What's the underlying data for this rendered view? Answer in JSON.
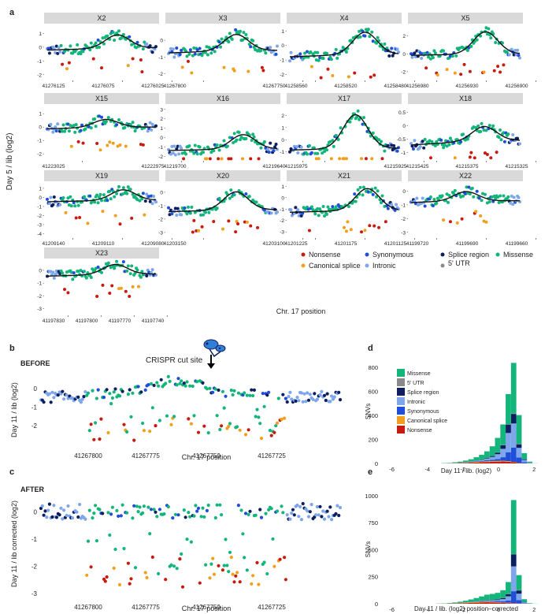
{
  "panel_labels": {
    "a": "a",
    "b": "b",
    "c": "c",
    "d": "d",
    "e": "e"
  },
  "colors": {
    "Nonsense": "#c81b0f",
    "Canonical splice": "#f0a01e",
    "Synonymous": "#1f4ed8",
    "Intronic": "#7ea6ea",
    "Splice region": "#0d1f5e",
    "5' UTR": "#8a8a8a",
    "Missense": "#13b57a"
  },
  "text": {
    "a_ylabel": "Day 5 / lib (log2)",
    "a_xlabel": "Chr. 17 position",
    "b_title": "BEFORE",
    "b_annotation": "CRISPR cut site",
    "b_ylabel": "Day 11 / lib (log2)",
    "b_xlabel": "Chr. 17 position",
    "c_title": "AFTER",
    "c_ylabel": "Day 11 / lib corrected (log2)",
    "c_xlabel": "Chr. 17 position",
    "d_ylabel": "SNVs",
    "d_xlabel": "Day 11 / lib. (log2)",
    "e_ylabel": "SNVs",
    "e_xlabel": "Day 11 / lib. (log2) position–corrected"
  },
  "legend_a": {
    "rows": [
      [
        "Nonsense",
        "Synonymous",
        "Splice region",
        "Missense"
      ],
      [
        "Canonical splice",
        "Intronic",
        "5' UTR"
      ]
    ]
  },
  "chart_data": [
    {
      "id": "a",
      "type": "scatter",
      "ylabel": "Day 5 / lib (log2)",
      "xlabel": "Chr. 17 position",
      "facets": [
        {
          "name": "X2",
          "yticks": [
            1,
            0,
            -1,
            -2
          ],
          "ylim": [
            -2.3,
            1.6
          ],
          "xticks": [
            "41276125",
            "41276075",
            "41276025"
          ],
          "peak": 0.95,
          "base": -0.05
        },
        {
          "name": "X3",
          "yticks": [
            0,
            -1,
            -2
          ],
          "ylim": [
            -2.3,
            0.9
          ],
          "xticks": [
            "41267800",
            "41267750"
          ],
          "peak": 0.4,
          "base": -0.6
        },
        {
          "name": "X4",
          "yticks": [
            1,
            0,
            -1,
            -2
          ],
          "ylim": [
            -2.3,
            1.4
          ],
          "xticks": [
            "41258560",
            "41258520",
            "41258480"
          ],
          "peak": 1.0,
          "base": -0.6
        },
        {
          "name": "X5",
          "yticks": [
            2,
            0,
            -2
          ],
          "ylim": [
            -2.8,
            3.2
          ],
          "xticks": [
            "41256980",
            "41256930",
            "41256900"
          ],
          "peak": 2.6,
          "base": 0.0
        },
        {
          "name": "X15",
          "yticks": [
            1,
            0,
            -1,
            -2
          ],
          "ylim": [
            -2.4,
            1.6
          ],
          "xticks": [
            "41223025",
            "41222975"
          ],
          "peak": 0.6,
          "base": 0.0
        },
        {
          "name": "X16",
          "yticks": [
            3,
            2,
            1,
            0,
            -1,
            -2
          ],
          "ylim": [
            -2.3,
            3.4
          ],
          "xticks": [
            "41219700",
            "41219640"
          ],
          "peak": 0.4,
          "base": -1.2
        },
        {
          "name": "X17",
          "yticks": [
            2,
            1,
            0,
            -1
          ],
          "ylim": [
            -1.6,
            2.8
          ],
          "xticks": [
            "41215975",
            "41215925"
          ],
          "peak": 2.2,
          "base": -0.7
        },
        {
          "name": "X18",
          "yticks": [
            0.5,
            0.0,
            -0.5,
            -1.0
          ],
          "ylim": [
            -1.25,
            0.75
          ],
          "xticks": [
            "41215425",
            "41215375",
            "41215325"
          ],
          "peak": 0.0,
          "base": -0.55
        },
        {
          "name": "X19",
          "yticks": [
            1,
            0,
            -1,
            -2,
            -3,
            -4
          ],
          "ylim": [
            -4.3,
            1.6
          ],
          "xticks": [
            "41209140",
            "41209110",
            "41209080"
          ],
          "peak": 0.9,
          "base": -0.3
        },
        {
          "name": "X20",
          "yticks": [
            0,
            -1,
            -2,
            -3
          ],
          "ylim": [
            -3.3,
            0.7
          ],
          "xticks": [
            "41203150",
            "41203100"
          ],
          "peak": 0.1,
          "base": -1.3
        },
        {
          "name": "X21",
          "yticks": [
            1,
            0,
            -1,
            -2,
            -3
          ],
          "ylim": [
            -3.4,
            1.3
          ],
          "xticks": [
            "41201225",
            "41201175",
            "41201125"
          ],
          "peak": 0.9,
          "base": -1.1
        },
        {
          "name": "X22",
          "yticks": [
            0,
            -1,
            -2,
            -3
          ],
          "ylim": [
            -3.3,
            0.6
          ],
          "xticks": [
            "41199720",
            "41199690",
            "41199660"
          ],
          "peak": 0.0,
          "base": -0.7
        },
        {
          "name": "X23",
          "yticks": [
            0,
            -1,
            -2,
            -3
          ],
          "ylim": [
            -3.4,
            0.8
          ],
          "xticks": [
            "41197830",
            "41197800",
            "41197770",
            "41197740"
          ],
          "peak": 0.5,
          "base": -0.3
        }
      ]
    },
    {
      "id": "b",
      "type": "scatter",
      "title": "BEFORE",
      "ylabel": "Day 11 / lib (log2)",
      "xlabel": "Chr. 17 position",
      "yticks": [
        0,
        -1,
        -2
      ],
      "ylim": [
        -3.2,
        0.9
      ],
      "xticks": [
        "41267800",
        "41267775",
        "41267750",
        "41267725"
      ]
    },
    {
      "id": "c",
      "type": "scatter",
      "title": "AFTER",
      "ylabel": "Day 11 / lib corrected (log2)",
      "xlabel": "Chr. 17 position",
      "yticks": [
        0,
        -1,
        -2,
        -3
      ],
      "ylim": [
        -3.2,
        0.5
      ],
      "xticks": [
        "41267800",
        "41267775",
        "41267750",
        "41267725"
      ]
    },
    {
      "id": "d",
      "type": "bar",
      "stacked": true,
      "xlabel": "Day 11 / lib. (log2)",
      "ylabel": "SNVs",
      "xlim": [
        -6.6,
        2.7
      ],
      "ylim": [
        0,
        880
      ],
      "xticks": [
        -6,
        -4,
        -2,
        0,
        2
      ],
      "yticks": [
        0,
        200,
        400,
        600,
        800
      ],
      "bin_start": -6.5,
      "bin_width": 0.3,
      "legend": [
        "Missense",
        "5' UTR",
        "Splice region",
        "Intronic",
        "Synonymous",
        "Canonical splice",
        "Nonsense"
      ],
      "series": [
        {
          "name": "Nonsense",
          "values": [
            0,
            0,
            0,
            0,
            0,
            0,
            0,
            0,
            0,
            0,
            0,
            1,
            1,
            2,
            3,
            4,
            6,
            8,
            10,
            12,
            14,
            15,
            16,
            14,
            10,
            4,
            1,
            0,
            0,
            0,
            0
          ]
        },
        {
          "name": "Canonical splice",
          "values": [
            0,
            0,
            0,
            0,
            0,
            0,
            0,
            0,
            0,
            0,
            0,
            0,
            1,
            1,
            2,
            3,
            4,
            5,
            5,
            6,
            6,
            6,
            6,
            5,
            3,
            1,
            0,
            0,
            0,
            0,
            0
          ]
        },
        {
          "name": "Synonymous",
          "values": [
            0,
            0,
            0,
            0,
            0,
            0,
            0,
            0,
            0,
            0,
            0,
            0,
            0,
            1,
            1,
            2,
            3,
            4,
            6,
            8,
            10,
            16,
            30,
            75,
            120,
            45,
            10,
            2,
            0,
            0,
            0
          ]
        },
        {
          "name": "Intronic",
          "values": [
            0,
            0,
            0,
            0,
            0,
            0,
            0,
            0,
            0,
            0,
            0,
            0,
            0,
            1,
            1,
            2,
            3,
            5,
            8,
            14,
            24,
            40,
            70,
            160,
            200,
            80,
            18,
            4,
            0,
            0,
            0
          ]
        },
        {
          "name": "Splice region",
          "values": [
            0,
            0,
            0,
            0,
            0,
            0,
            0,
            0,
            0,
            0,
            0,
            0,
            0,
            0,
            0,
            1,
            1,
            2,
            3,
            5,
            8,
            14,
            30,
            70,
            80,
            30,
            6,
            1,
            0,
            0,
            0
          ]
        },
        {
          "name": "5' UTR",
          "values": [
            0,
            0,
            0,
            0,
            0,
            0,
            0,
            0,
            0,
            0,
            0,
            0,
            0,
            0,
            0,
            0,
            0,
            0,
            0,
            1,
            1,
            2,
            3,
            4,
            5,
            3,
            1,
            0,
            0,
            0,
            0
          ]
        },
        {
          "name": "Missense",
          "values": [
            0,
            0,
            0,
            0,
            0,
            0,
            0,
            0,
            0,
            0,
            0,
            2,
            3,
            5,
            8,
            12,
            18,
            28,
            40,
            55,
            80,
            120,
            170,
            250,
            420,
            240,
            50,
            8,
            1,
            0,
            0
          ]
        }
      ]
    },
    {
      "id": "e",
      "type": "bar",
      "stacked": true,
      "xlabel": "Day 11 / lib. (log2) position–corrected",
      "ylabel": "SNVs",
      "xlim": [
        -6.6,
        2.7
      ],
      "ylim": [
        0,
        1080
      ],
      "xticks": [
        -6,
        -4,
        -2,
        0,
        2
      ],
      "yticks": [
        0,
        250,
        500,
        750,
        1000
      ],
      "bin_start": -6.5,
      "bin_width": 0.3,
      "series": [
        {
          "name": "Nonsense",
          "values": [
            0,
            0,
            0,
            0,
            0,
            0,
            0,
            0,
            0,
            0,
            1,
            1,
            2,
            3,
            4,
            6,
            8,
            10,
            12,
            14,
            12,
            10,
            8,
            6,
            4,
            2,
            1,
            0,
            0,
            0,
            0
          ]
        },
        {
          "name": "Canonical splice",
          "values": [
            0,
            0,
            0,
            0,
            0,
            0,
            0,
            0,
            0,
            0,
            0,
            1,
            1,
            2,
            3,
            4,
            5,
            6,
            6,
            6,
            5,
            4,
            3,
            3,
            2,
            1,
            0,
            0,
            0,
            0,
            0
          ]
        },
        {
          "name": "Synonymous",
          "values": [
            0,
            0,
            0,
            0,
            0,
            0,
            0,
            0,
            0,
            0,
            0,
            0,
            0,
            1,
            1,
            2,
            2,
            3,
            4,
            5,
            6,
            8,
            12,
            20,
            110,
            30,
            4,
            1,
            0,
            0,
            0
          ]
        },
        {
          "name": "Intronic",
          "values": [
            0,
            0,
            0,
            0,
            0,
            0,
            0,
            0,
            0,
            0,
            0,
            0,
            0,
            0,
            1,
            1,
            2,
            3,
            4,
            6,
            8,
            12,
            20,
            40,
            230,
            60,
            8,
            1,
            0,
            0,
            0
          ]
        },
        {
          "name": "Splice region",
          "values": [
            0,
            0,
            0,
            0,
            0,
            0,
            0,
            0,
            0,
            0,
            0,
            0,
            0,
            0,
            0,
            0,
            1,
            1,
            2,
            3,
            4,
            6,
            10,
            20,
            110,
            30,
            4,
            0,
            0,
            0,
            0
          ]
        },
        {
          "name": "5' UTR",
          "values": [
            0,
            0,
            0,
            0,
            0,
            0,
            0,
            0,
            0,
            0,
            0,
            0,
            0,
            0,
            0,
            0,
            0,
            0,
            0,
            0,
            1,
            1,
            2,
            2,
            4,
            2,
            0,
            0,
            0,
            0,
            0
          ]
        },
        {
          "name": "Missense",
          "values": [
            0,
            0,
            0,
            0,
            0,
            0,
            0,
            0,
            0,
            0,
            1,
            2,
            4,
            6,
            10,
            15,
            22,
            30,
            40,
            50,
            55,
            60,
            70,
            110,
            500,
            140,
            25,
            4,
            1,
            0,
            0
          ]
        }
      ]
    }
  ]
}
